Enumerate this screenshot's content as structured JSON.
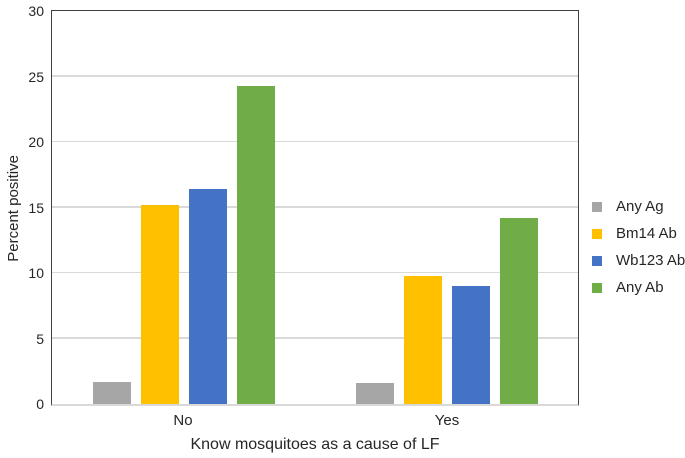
{
  "chart_data": {
    "type": "bar",
    "title": "",
    "xlabel": "Know mosquitoes as a cause of LF",
    "ylabel": "Percent positive",
    "categories": [
      "No",
      "Yes"
    ],
    "series": [
      {
        "name": "Any Ag",
        "color": "#A6A6A6",
        "values": [
          1.7,
          1.6
        ]
      },
      {
        "name": "Bm14 Ab",
        "color": "#FFC000",
        "values": [
          15.2,
          9.8
        ]
      },
      {
        "name": "Wb123 Ab",
        "color": "#4472C4",
        "values": [
          16.4,
          9.0
        ]
      },
      {
        "name": "Any Ab",
        "color": "#70AD47",
        "values": [
          24.3,
          14.2
        ]
      }
    ],
    "ylim": [
      0,
      30
    ],
    "ytick_step": 5,
    "grid": true,
    "legend_position": "right"
  },
  "colors": {
    "background": "#FFFFFF",
    "axis_border": "#404040",
    "gridline": "#D9D9D9",
    "text": "#262626"
  }
}
